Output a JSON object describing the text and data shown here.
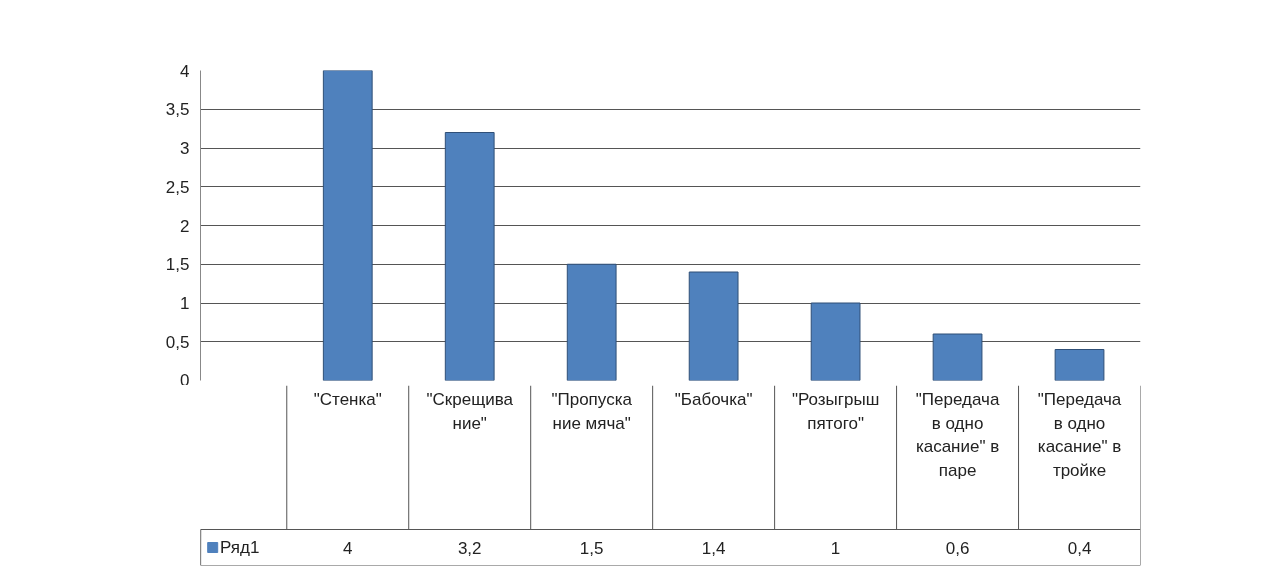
{
  "chart_data": {
    "type": "bar",
    "categories": [
      "\"Стенка\"",
      "\"Скрещивание\"",
      "\"Пропускание мяча\"",
      "\"Бабочка\"",
      "\"Розыгрыш пятого\"",
      "\"Передача в одно касание\" в паре",
      "\"Передача в одно касание\" в тройке"
    ],
    "series": [
      {
        "name": "Ряд1",
        "color": "#4f81bd",
        "values": [
          4,
          3.2,
          1.5,
          1.4,
          1,
          0.6,
          0.4
        ],
        "value_labels": [
          "4",
          "3,2",
          "1,5",
          "1,4",
          "1",
          "0,6",
          "0,4"
        ]
      }
    ],
    "ylim": [
      0,
      4
    ],
    "yticks": [
      0,
      {
        "value": 0.5,
        "label": "0,5"
      },
      1,
      {
        "value": 1.5,
        "label": "1,5"
      },
      2,
      {
        "value": 2.5,
        "label": "2,5"
      },
      3,
      {
        "value": 3.5,
        "label": "3,5"
      },
      4
    ],
    "grid": "y",
    "legend": "bottom"
  }
}
